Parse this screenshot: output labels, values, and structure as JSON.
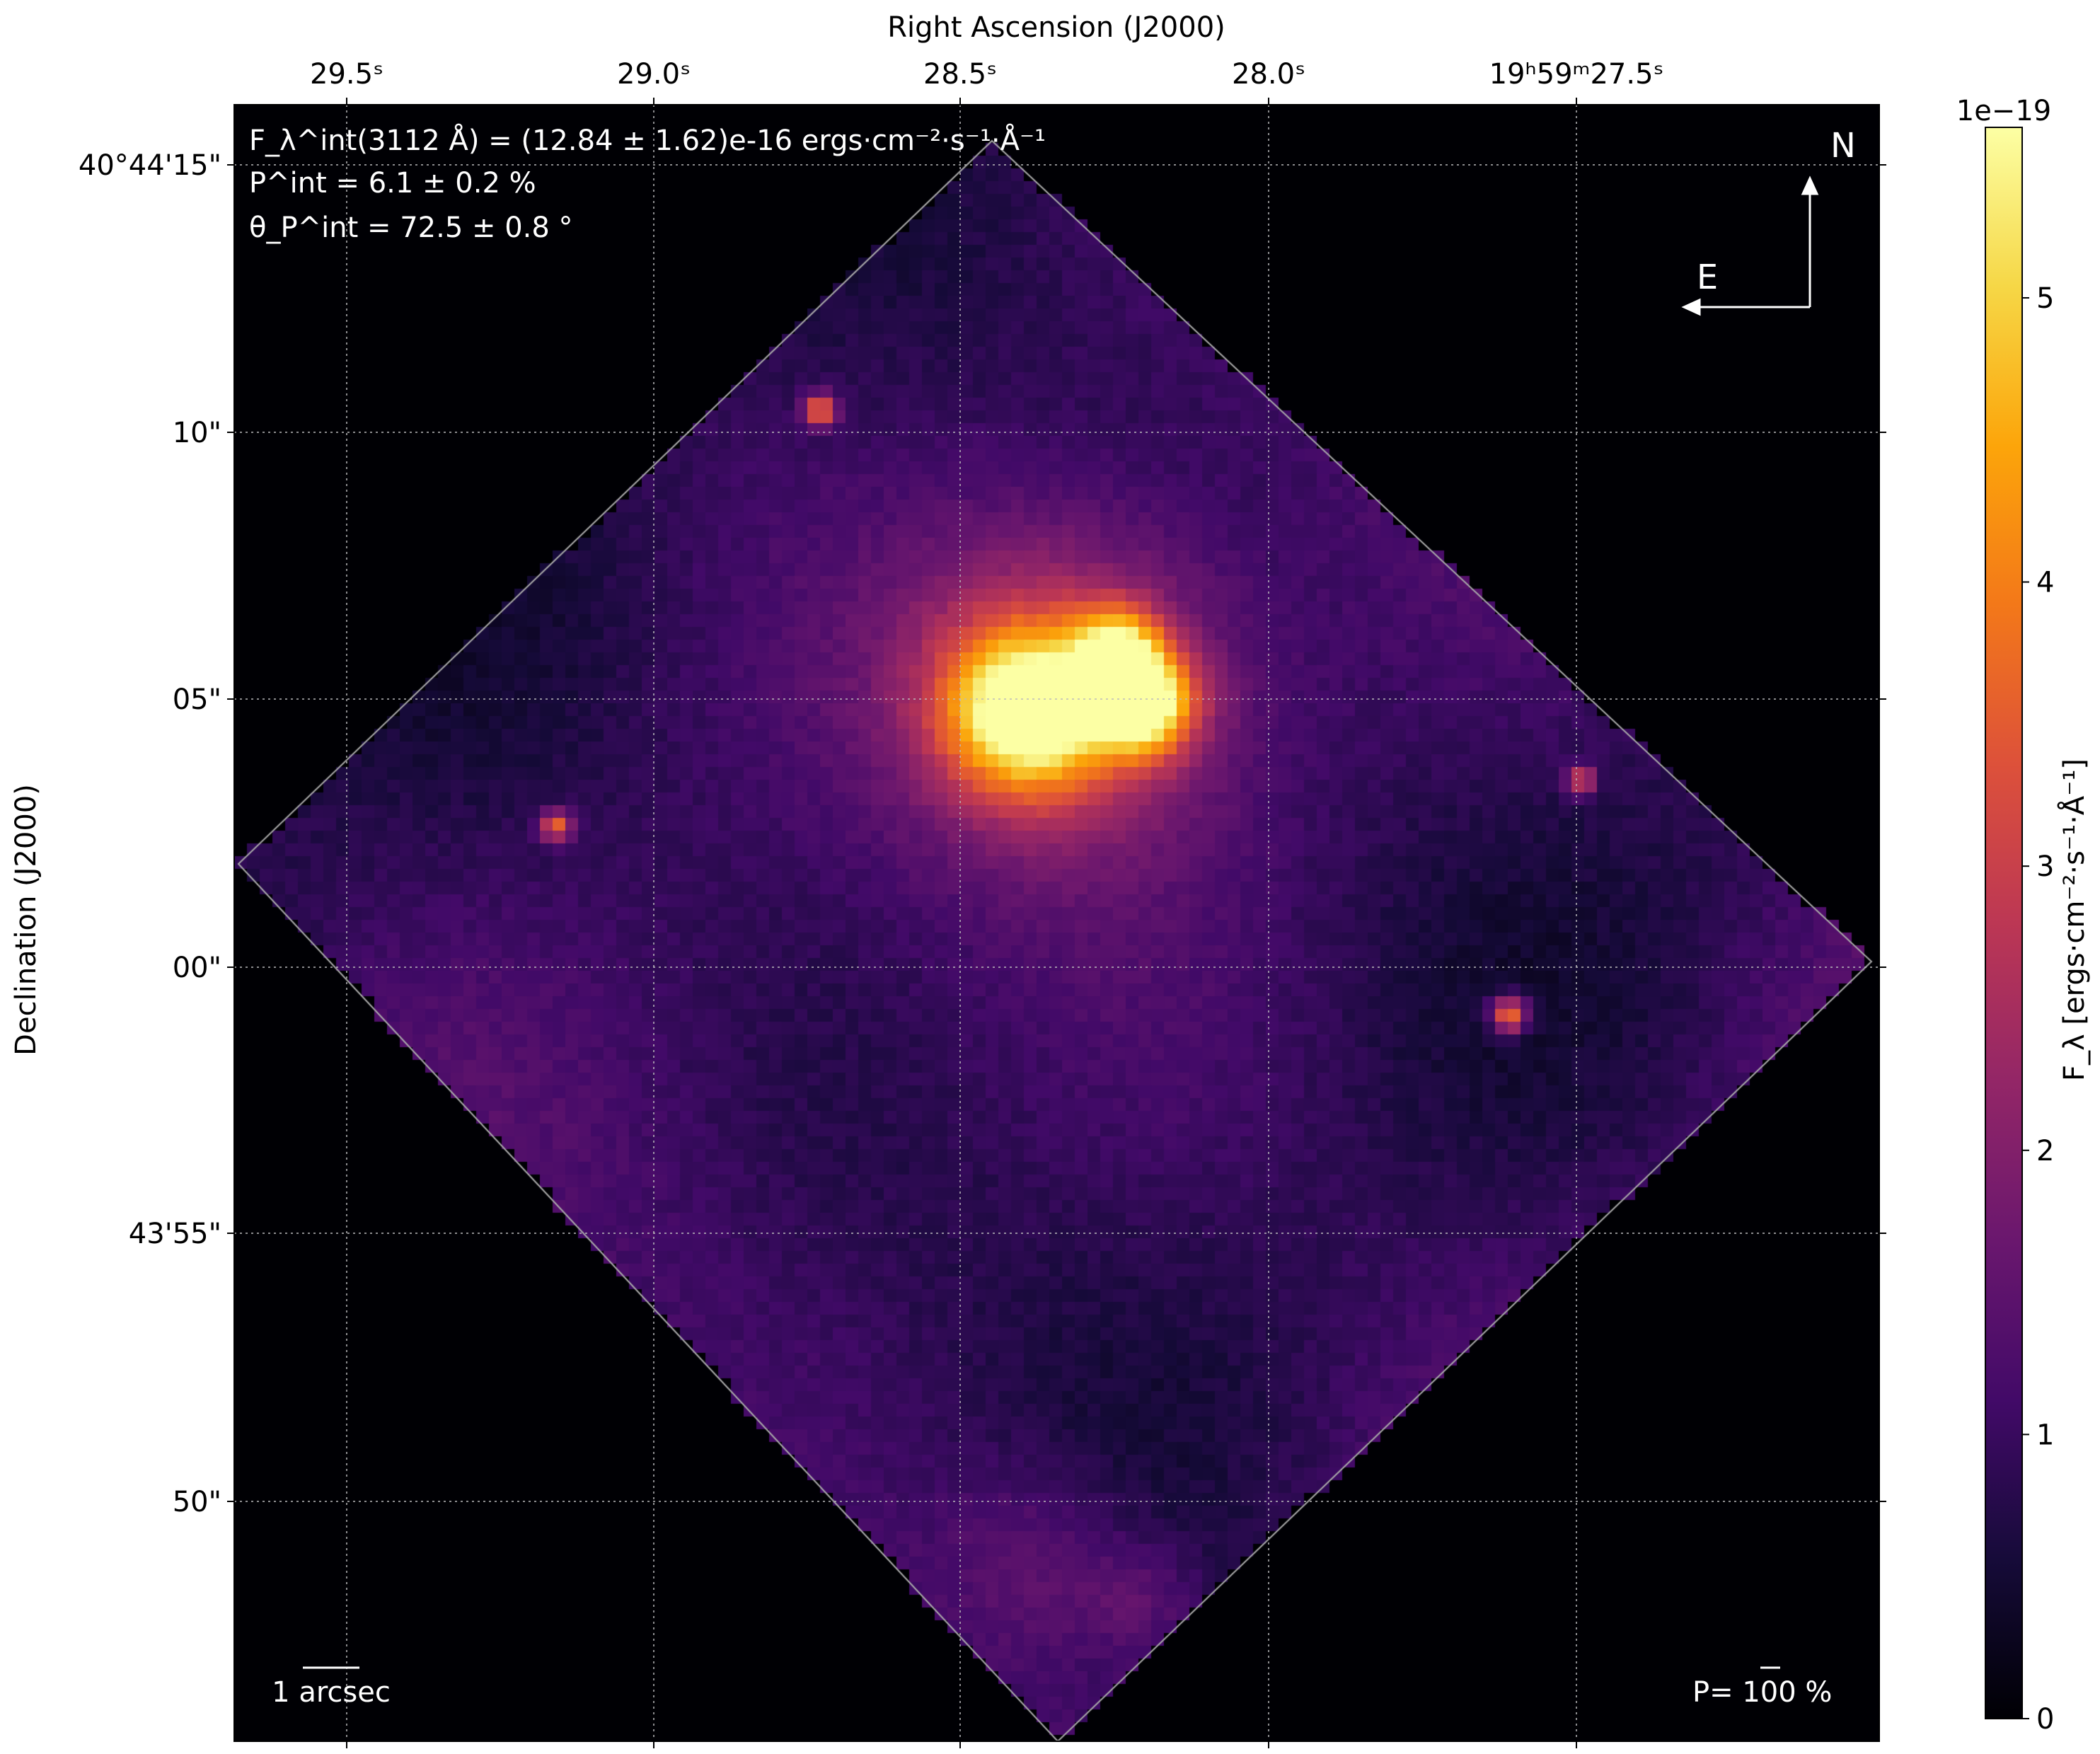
{
  "chart_data": {
    "type": "heatmap",
    "title": "",
    "colormap": "inferno",
    "xlabel": "Right Ascension (J2000)",
    "ylabel": "Declination (J2000)",
    "x_ticks": [
      "29.5ˢ",
      "29.0ˢ",
      "28.5ˢ",
      "28.0ˢ",
      "19ʰ59ᵐ27.5ˢ"
    ],
    "y_ticks": [
      "40°44'15\"",
      "10\"",
      "05\"",
      "00\"",
      "43'55\"",
      "50\""
    ],
    "grid": true,
    "colorbar": {
      "label": "F_λ [ergs·cm⁻²·s⁻¹·Å⁻¹]",
      "offset_text": "1e−19",
      "ticks": [
        "0",
        "1",
        "2",
        "3",
        "4",
        "5"
      ],
      "range": [
        0,
        5.6
      ]
    },
    "annotations": {
      "flux": "F_λ^int(3112 Å) = (12.84 ± 1.62)e-16 ergs·cm⁻²·s⁻¹·Å⁻¹",
      "pol_degree": "P^int = 6.1 ± 0.2 %",
      "pol_angle": "θ_P^int = 72.5 ± 0.8 °",
      "compass_north": "N",
      "compass_east": "E",
      "scale_bar": "1 arcsec",
      "pol_scale": "P= 100 %"
    }
  }
}
